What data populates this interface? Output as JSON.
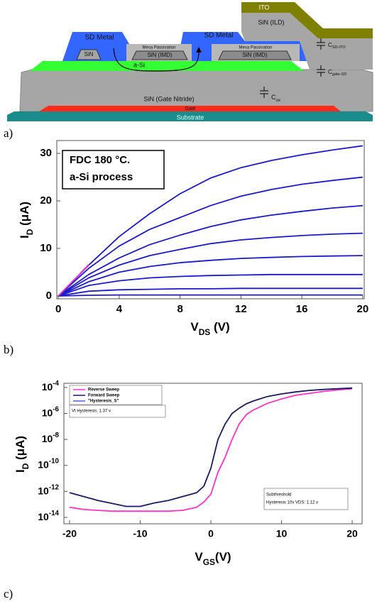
{
  "diagram": {
    "labels": {
      "ito": "ITO",
      "ild": "SiN (ILD)",
      "sd_left": "SD Metal",
      "sd_right": "SD Metal",
      "sin": "SiN",
      "mesa_left": "Mesa Passivation",
      "imd_left": "SiN (IMD)",
      "mesa_right": "Mesa Passivation",
      "imd_right": "SiN (IMD)",
      "asi": "a-Si",
      "gate_nitride": "SiN (Gate Nitride)",
      "cox": "Cox",
      "csd_ito": "CSD-ITO",
      "cgate_sd": "Cgate-SD",
      "gate": "Gate",
      "substrate": "Substrate"
    }
  },
  "panel_labels": [
    "a)",
    "b)",
    "c)"
  ],
  "chart_data": [
    {
      "type": "line",
      "xlabel": "VDS (V)",
      "ylabel": "ID (μA)",
      "annotations": [
        [
          "FDC 180 °C.",
          "a-Si process"
        ]
      ],
      "x": [
        0,
        2,
        4,
        6,
        8,
        10,
        12,
        14,
        16,
        18,
        20
      ],
      "series": [
        {
          "color": "#1a1acc",
          "values": [
            0,
            6.5,
            12.5,
            17.3,
            21.5,
            24.8,
            27,
            28.5,
            29.7,
            30.7,
            31.6
          ]
        },
        {
          "color": "#1a1acc",
          "values": [
            0,
            5.8,
            10.5,
            14,
            16.5,
            19,
            21,
            22.4,
            23.5,
            24.3,
            25
          ]
        },
        {
          "color": "#1a1acc",
          "values": [
            0,
            4.5,
            8,
            10.8,
            12.8,
            14.6,
            16,
            17,
            17.8,
            18.5,
            19
          ]
        },
        {
          "color": "#1a1acc",
          "values": [
            0,
            3.8,
            6.5,
            8.5,
            9.8,
            11,
            11.8,
            12.3,
            12.7,
            13,
            13.2
          ]
        },
        {
          "color": "#1a1acc",
          "values": [
            0,
            3,
            5,
            6.2,
            7,
            7.5,
            7.9,
            8.1,
            8.3,
            8.4,
            8.5
          ]
        },
        {
          "color": "#1a1acc",
          "values": [
            0,
            2.2,
            3.2,
            3.8,
            4.1,
            4.3,
            4.4,
            4.5,
            4.5,
            4.5,
            4.5
          ]
        },
        {
          "color": "#1a1acc",
          "values": [
            0,
            1,
            1.3,
            1.4,
            1.5,
            1.5,
            1.6,
            1.6,
            1.6,
            1.6,
            1.6
          ]
        },
        {
          "color": "#1a1acc",
          "values": [
            0,
            0.15,
            0.2,
            0.2,
            0.2,
            0.2,
            0.2,
            0.2,
            0.2,
            0.2,
            0.2
          ]
        },
        {
          "color": "#ff33cc",
          "values": [
            0,
            6.6,
            null,
            null,
            null,
            null,
            null,
            null,
            null,
            null,
            null
          ]
        }
      ],
      "xlim": [
        -0.1,
        20.1
      ],
      "ylim": [
        -0.6,
        32.7
      ],
      "xticks": [
        0,
        4,
        8,
        12,
        16,
        20
      ],
      "yticks": [
        0,
        10,
        20,
        30
      ],
      "grid": false,
      "log_y": false
    },
    {
      "type": "line",
      "xlabel": "VGS(V)",
      "ylabel": "ID (μA)",
      "annotations": [
        [
          "Vt Hysteresis: 1.37 v"
        ],
        [
          "Subthreshold",
          "Hysteresis 10v VDS: 1.12 v"
        ]
      ],
      "legend": "top-left",
      "x": [
        -20,
        -18,
        -16,
        -14,
        -12,
        -10,
        -8,
        -6,
        -4,
        -2,
        -1,
        0,
        1,
        2,
        3,
        4,
        5,
        6,
        8,
        10,
        12,
        14,
        16,
        18,
        20
      ],
      "series": [
        {
          "name": "Reverse Sweep",
          "color": "#ff33cc",
          "values": [
            6e-14,
            4e-14,
            3.5e-14,
            3e-14,
            3e-14,
            3e-14,
            3e-14,
            3e-14,
            3.5e-14,
            6e-14,
            1.5e-13,
            6e-13,
            3e-11,
            4e-10,
            1e-08,
            1.5e-07,
            8e-07,
            1.8e-06,
            6e-06,
            1.3e-05,
            2.5e-05,
            3.5e-05,
            5e-05,
            6.5e-05,
            8e-05
          ]
        },
        {
          "name": "Forward Sweep",
          "color": "#1a1a66",
          "values": [
            8e-13,
            4e-13,
            2e-13,
            1.2e-13,
            7e-14,
            7e-14,
            1.3e-13,
            2e-13,
            4e-13,
            8e-13,
            2.5e-12,
            6e-11,
            1e-08,
            1.5e-07,
            1e-06,
            2.5e-06,
            5.5e-06,
            9e-06,
            2e-05,
            3.2e-05,
            4.5e-05,
            6e-05,
            7e-05,
            8e-05,
            9e-05
          ]
        },
        {
          "name": "\"Hysteresis_S\"",
          "color": "#4466cc",
          "values": [
            null,
            null,
            null,
            null,
            null,
            null,
            null,
            null,
            null,
            null,
            null,
            null,
            null,
            null,
            null,
            null,
            null,
            null,
            null,
            null,
            null,
            null,
            null,
            null,
            null
          ]
        }
      ],
      "xlim": [
        -20.8,
        21.4
      ],
      "ylim": [
        3.2e-15,
        0.00021
      ],
      "xticks": [
        -20,
        -10,
        0,
        10,
        20
      ],
      "yticks": [
        {
          "value": 1e-14,
          "label": "10-14"
        },
        {
          "value": 1e-12,
          "label": "10-12"
        },
        {
          "value": 1e-10,
          "label": "10-10"
        },
        {
          "value": 1e-08,
          "label": "10-8"
        },
        {
          "value": 1e-06,
          "label": "10-6"
        },
        {
          "value": 0.0001,
          "label": "10-4"
        }
      ],
      "grid": false,
      "log_y": true
    }
  ]
}
